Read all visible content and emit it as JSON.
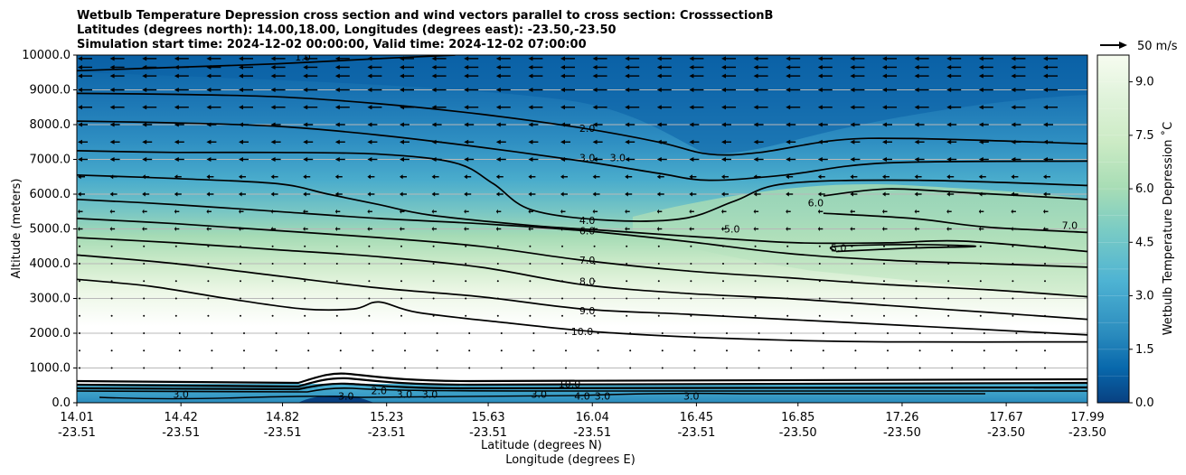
{
  "chart_data": {
    "type": "contour",
    "title_lines": [
      "Wetbulb Temperature Depression cross section and wind vectors parallel to cross section: CrosssectionB",
      "Latitudes (degrees north): 14.00,18.00, Longitudes (degrees east): -23.50,-23.50",
      "Simulation start time: 2024-12-02 00:00:00, Valid time: 2024-12-02 07:00:00"
    ],
    "ylabel": "Altitude (meters)",
    "xlabel_lat": "Latitude (degrees N)",
    "xlabel_lon": "Longitude (degrees E)",
    "ylim": [
      0,
      10000
    ],
    "xlim": [
      14.01,
      17.99
    ],
    "y_ticks": [
      "0.0",
      "1000.0",
      "2000.0",
      "3000.0",
      "4000.0",
      "5000.0",
      "6000.0",
      "7000.0",
      "8000.0",
      "9000.0",
      "10000.0"
    ],
    "x_ticks": [
      {
        "lat": "14.01",
        "lon": "-23.51"
      },
      {
        "lat": "14.42",
        "lon": "-23.51"
      },
      {
        "lat": "14.82",
        "lon": "-23.51"
      },
      {
        "lat": "15.23",
        "lon": "-23.51"
      },
      {
        "lat": "15.63",
        "lon": "-23.51"
      },
      {
        "lat": "16.04",
        "lon": "-23.51"
      },
      {
        "lat": "16.45",
        "lon": "-23.51"
      },
      {
        "lat": "16.85",
        "lon": "-23.50"
      },
      {
        "lat": "17.26",
        "lon": "-23.50"
      },
      {
        "lat": "17.67",
        "lon": "-23.50"
      },
      {
        "lat": "17.99",
        "lon": "-23.50"
      }
    ],
    "colorbar": {
      "label": "Wetbulb Temperature Depression ˚C",
      "ticks": [
        "0.0",
        "1.5",
        "3.0",
        "4.5",
        "6.0",
        "7.5",
        "9.0"
      ],
      "min": 0,
      "max": 9.75
    },
    "quiver_key": "50 m/s",
    "contours": [
      {
        "level": "1.0",
        "points": [
          [
            14.01,
            9550
          ],
          [
            14.4,
            9650
          ],
          [
            14.8,
            9750
          ],
          [
            15.2,
            9900
          ],
          [
            15.5,
            10000
          ]
        ]
      },
      {
        "level": "2.0",
        "points": [
          [
            14.01,
            8900
          ],
          [
            14.4,
            8870
          ],
          [
            14.8,
            8800
          ],
          [
            15.2,
            8600
          ],
          [
            15.6,
            8300
          ],
          [
            16.0,
            7900
          ],
          [
            16.3,
            7500
          ],
          [
            16.5,
            7150
          ],
          [
            16.7,
            7200
          ],
          [
            17.0,
            7550
          ],
          [
            17.3,
            7600
          ],
          [
            17.99,
            7450
          ]
        ]
      },
      {
        "level": "3.0",
        "points": [
          [
            14.01,
            8100
          ],
          [
            14.4,
            8050
          ],
          [
            14.8,
            7950
          ],
          [
            15.2,
            7700
          ],
          [
            15.6,
            7350
          ],
          [
            16.0,
            6950
          ],
          [
            16.3,
            6600
          ],
          [
            16.5,
            6400
          ],
          [
            16.8,
            6550
          ],
          [
            17.2,
            6900
          ],
          [
            17.99,
            6950
          ]
        ]
      },
      {
        "level": "4.0",
        "points": [
          [
            14.01,
            7250
          ],
          [
            14.4,
            7200
          ],
          [
            14.8,
            7200
          ],
          [
            15.2,
            7150
          ],
          [
            15.5,
            6900
          ],
          [
            15.65,
            6300
          ],
          [
            15.8,
            5550
          ],
          [
            16.1,
            5250
          ],
          [
            16.4,
            5300
          ],
          [
            16.6,
            5800
          ],
          [
            16.8,
            6300
          ],
          [
            17.3,
            6400
          ],
          [
            17.99,
            6250
          ]
        ]
      },
      {
        "level": "5.0",
        "points": [
          [
            14.01,
            6550
          ],
          [
            14.4,
            6450
          ],
          [
            14.8,
            6300
          ],
          [
            15.0,
            6000
          ],
          [
            15.2,
            5700
          ],
          [
            15.4,
            5400
          ],
          [
            15.8,
            5100
          ],
          [
            16.1,
            4950
          ],
          [
            16.5,
            4750
          ],
          [
            16.85,
            4600
          ],
          [
            17.2,
            4600
          ],
          [
            17.5,
            4650
          ],
          [
            17.99,
            4350
          ]
        ]
      },
      {
        "level": "6.0",
        "points": [
          [
            14.01,
            5850
          ],
          [
            14.4,
            5700
          ],
          [
            14.8,
            5500
          ],
          [
            15.2,
            5300
          ],
          [
            15.6,
            5150
          ],
          [
            16.0,
            4950
          ],
          [
            16.4,
            4650
          ],
          [
            16.8,
            4300
          ],
          [
            17.2,
            4100
          ],
          [
            17.6,
            4000
          ],
          [
            17.99,
            3900
          ]
        ]
      },
      {
        "level": "7.0",
        "points": [
          [
            14.01,
            5300
          ],
          [
            14.4,
            5150
          ],
          [
            14.8,
            4950
          ],
          [
            15.2,
            4750
          ],
          [
            15.6,
            4500
          ],
          [
            16.0,
            4100
          ],
          [
            16.4,
            3800
          ],
          [
            16.8,
            3600
          ],
          [
            17.2,
            3400
          ],
          [
            17.6,
            3250
          ],
          [
            17.99,
            3050
          ]
        ]
      },
      {
        "level": "8.0",
        "points": [
          [
            14.01,
            4750
          ],
          [
            14.4,
            4600
          ],
          [
            14.8,
            4400
          ],
          [
            15.2,
            4200
          ],
          [
            15.6,
            3900
          ],
          [
            16.0,
            3400
          ],
          [
            16.4,
            3150
          ],
          [
            16.8,
            3000
          ],
          [
            17.2,
            2800
          ],
          [
            17.6,
            2600
          ],
          [
            17.99,
            2400
          ]
        ]
      },
      {
        "level": "9.0",
        "points": [
          [
            14.01,
            4250
          ],
          [
            14.4,
            4000
          ],
          [
            14.8,
            3650
          ],
          [
            15.2,
            3300
          ],
          [
            15.6,
            3050
          ],
          [
            16.0,
            2700
          ],
          [
            16.4,
            2550
          ],
          [
            16.8,
            2400
          ],
          [
            17.2,
            2250
          ],
          [
            17.6,
            2100
          ],
          [
            17.99,
            1950
          ]
        ]
      },
      {
        "level": "10.0",
        "points": [
          [
            14.01,
            3550
          ],
          [
            14.3,
            3350
          ],
          [
            14.6,
            3000
          ],
          [
            14.9,
            2700
          ],
          [
            15.1,
            2700
          ],
          [
            15.2,
            2900
          ],
          [
            15.35,
            2600
          ],
          [
            15.7,
            2300
          ],
          [
            16.04,
            2050
          ],
          [
            16.4,
            1900
          ],
          [
            16.8,
            1800
          ],
          [
            17.2,
            1750
          ],
          [
            17.99,
            1750
          ]
        ]
      },
      {
        "level": "6.0",
        "points": [
          [
            16.95,
            5950
          ],
          [
            17.2,
            6150
          ],
          [
            17.5,
            6050
          ],
          [
            17.99,
            5850
          ]
        ]
      },
      {
        "level": "7.0",
        "points": [
          [
            16.95,
            5450
          ],
          [
            17.3,
            5300
          ],
          [
            17.6,
            5050
          ],
          [
            17.99,
            4900
          ]
        ]
      },
      {
        "level": "5.0",
        "points": [
          [
            17.0,
            4350
          ],
          [
            17.3,
            4450
          ],
          [
            17.55,
            4500
          ],
          [
            17.3,
            4550
          ],
          [
            17.0,
            4500
          ],
          [
            17.0,
            4350
          ]
        ]
      }
    ],
    "contour_labels": [
      {
        "text": "1.0",
        "x": 14.9,
        "y": 9950
      },
      {
        "text": "2.0",
        "x": 16.02,
        "y": 7900
      },
      {
        "text": "3.0",
        "x": 16.02,
        "y": 7050
      },
      {
        "text": "3.0",
        "x": 16.14,
        "y": 7050
      },
      {
        "text": "4.0",
        "x": 16.02,
        "y": 5250
      },
      {
        "text": "6.0",
        "x": 16.02,
        "y": 4950
      },
      {
        "text": "7.0",
        "x": 16.02,
        "y": 4100
      },
      {
        "text": "8.0",
        "x": 16.02,
        "y": 3500
      },
      {
        "text": "9.0",
        "x": 16.02,
        "y": 2650
      },
      {
        "text": "10.0",
        "x": 16.0,
        "y": 2050
      },
      {
        "text": "5.0",
        "x": 16.59,
        "y": 5000
      },
      {
        "text": "6.0",
        "x": 16.92,
        "y": 5750
      },
      {
        "text": "5.0",
        "x": 17.01,
        "y": 4450
      },
      {
        "text": "7.0",
        "x": 17.92,
        "y": 5100
      },
      {
        "text": "10.0",
        "x": 15.95,
        "y": 550
      },
      {
        "text": "3.0",
        "x": 14.42,
        "y": 250
      },
      {
        "text": "3.0",
        "x": 15.07,
        "y": 200
      },
      {
        "text": "2.0",
        "x": 15.2,
        "y": 350
      },
      {
        "text": "3.0",
        "x": 15.3,
        "y": 250
      },
      {
        "text": "3.0",
        "x": 15.4,
        "y": 250
      },
      {
        "text": "3.0",
        "x": 15.83,
        "y": 250
      },
      {
        "text": "4.0",
        "x": 16.0,
        "y": 200
      },
      {
        "text": "3.0",
        "x": 16.08,
        "y": 200
      },
      {
        "text": "3.0",
        "x": 16.43,
        "y": 200
      }
    ],
    "annotations": [
      "x-axis shows latitude over longitude for each tick"
    ]
  }
}
